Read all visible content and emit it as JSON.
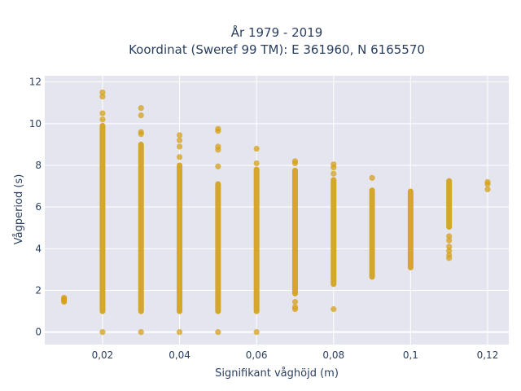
{
  "chart_data": {
    "type": "scatter",
    "title_lines": [
      "År 1979 - 2019",
      "Koordinat (Sweref 99 TM): E 361960, N 6165570"
    ],
    "xlabel": "Signifikant våghöjd (m)",
    "ylabel": "Vågperiod (s)",
    "xlim": [
      0.005,
      0.1255
    ],
    "ylim": [
      -0.6,
      12.3
    ],
    "x_ticks": [
      0.02,
      0.04,
      0.06,
      0.08,
      0.1,
      0.12
    ],
    "x_tick_labels": [
      "0,02",
      "0,04",
      "0,06",
      "0,08",
      "0,1",
      "0,12"
    ],
    "y_ticks": [
      0,
      2,
      4,
      6,
      8,
      10,
      12
    ],
    "y_tick_labels": [
      "0",
      "2",
      "4",
      "6",
      "8",
      "10",
      "12"
    ],
    "grid": true,
    "marker_color": "#d4a017",
    "background_color": "#e5e5f0",
    "series": [
      {
        "points": [
          [
            0.01,
            1.45
          ],
          [
            0.01,
            1.5
          ],
          [
            0.01,
            1.55
          ],
          [
            0.01,
            1.6
          ],
          [
            0.01,
            1.65
          ],
          [
            0.02,
            0
          ],
          [
            0.02,
            11.5
          ],
          [
            0.02,
            11.3
          ],
          [
            0.02,
            10.5
          ],
          [
            0.02,
            10.2
          ],
          [
            0.03,
            0
          ],
          [
            0.03,
            10.75
          ],
          [
            0.03,
            10.4
          ],
          [
            0.03,
            9.6
          ],
          [
            0.03,
            9.5
          ],
          [
            0.04,
            0
          ],
          [
            0.04,
            9.45
          ],
          [
            0.04,
            9.2
          ],
          [
            0.04,
            8.9
          ],
          [
            0.04,
            8.4
          ],
          [
            0.05,
            0
          ],
          [
            0.05,
            9.75
          ],
          [
            0.05,
            9.65
          ],
          [
            0.05,
            8.9
          ],
          [
            0.05,
            8.75
          ],
          [
            0.05,
            7.95
          ],
          [
            0.06,
            0
          ],
          [
            0.06,
            8.8
          ],
          [
            0.06,
            8.1
          ],
          [
            0.07,
            8.2
          ],
          [
            0.07,
            8.1
          ],
          [
            0.07,
            1.45
          ],
          [
            0.07,
            1.2
          ],
          [
            0.07,
            1.1
          ],
          [
            0.08,
            8.05
          ],
          [
            0.08,
            7.9
          ],
          [
            0.08,
            7.6
          ],
          [
            0.08,
            1.1
          ],
          [
            0.09,
            7.4
          ],
          [
            0.11,
            4.6
          ],
          [
            0.11,
            4.4
          ],
          [
            0.11,
            4.1
          ],
          [
            0.11,
            3.9
          ],
          [
            0.11,
            3.7
          ],
          [
            0.11,
            3.55
          ],
          [
            0.12,
            7.2
          ],
          [
            0.12,
            7.1
          ],
          [
            0.12,
            6.85
          ]
        ],
        "ranges": [
          [
            0.02,
            1.0,
            9.9
          ],
          [
            0.03,
            1.0,
            9.0
          ],
          [
            0.04,
            1.0,
            8.0
          ],
          [
            0.05,
            1.0,
            7.1
          ],
          [
            0.06,
            1.0,
            7.8
          ],
          [
            0.07,
            1.85,
            7.75
          ],
          [
            0.08,
            2.3,
            7.3
          ],
          [
            0.09,
            2.65,
            6.8
          ],
          [
            0.1,
            3.1,
            6.75
          ],
          [
            0.11,
            5.05,
            7.25
          ]
        ]
      }
    ]
  }
}
